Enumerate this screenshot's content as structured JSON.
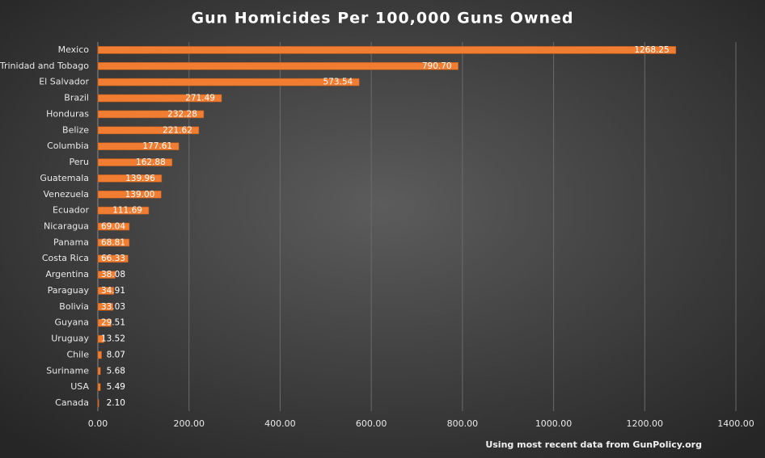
{
  "chart_data": {
    "type": "hbar",
    "title": "Gun Homicides Per 100,000 Guns Owned",
    "note": "Using most recent data from GunPolicy.org",
    "categories": [
      "Mexico",
      "Trinidad and Tobago",
      "El Salvador",
      "Brazil",
      "Honduras",
      "Belize",
      "Columbia",
      "Peru",
      "Guatemala",
      "Venezuela",
      "Ecuador",
      "Nicaragua",
      "Panama",
      "Costa Rica",
      "Argentina",
      "Paraguay",
      "Bolivia",
      "Guyana",
      "Uruguay",
      "Chile",
      "Suriname",
      "USA",
      "Canada"
    ],
    "values": [
      1268.25,
      790.7,
      573.54,
      271.49,
      232.28,
      221.62,
      177.61,
      162.88,
      139.96,
      139.0,
      111.69,
      69.04,
      68.81,
      66.33,
      38.08,
      34.91,
      33.03,
      29.51,
      13.52,
      8.07,
      5.68,
      5.49,
      2.1
    ],
    "value_labels": [
      "1268.25",
      "790.70",
      "573.54",
      "271.49",
      "232.28",
      "221.62",
      "177.61",
      "162.88",
      "139.96",
      "139.00",
      "111.69",
      "69.04",
      "68.81",
      "66.33",
      "38.08",
      "34.91",
      "33.03",
      "29.51",
      "13.52",
      "8.07",
      "5.68",
      "5.49",
      "2.10"
    ],
    "color": "#f07d32",
    "xlim": [
      0,
      1400
    ],
    "xticks": [
      {
        "value": 0,
        "label": "0.00"
      },
      {
        "value": 200,
        "label": "200.00"
      },
      {
        "value": 400,
        "label": "400.00"
      },
      {
        "value": 600,
        "label": "600.00"
      },
      {
        "value": 800,
        "label": "800.00"
      },
      {
        "value": 1000,
        "label": "1000.00"
      },
      {
        "value": 1200,
        "label": "1200.00"
      },
      {
        "value": 1400,
        "label": "1400.00"
      }
    ],
    "grid": true
  }
}
